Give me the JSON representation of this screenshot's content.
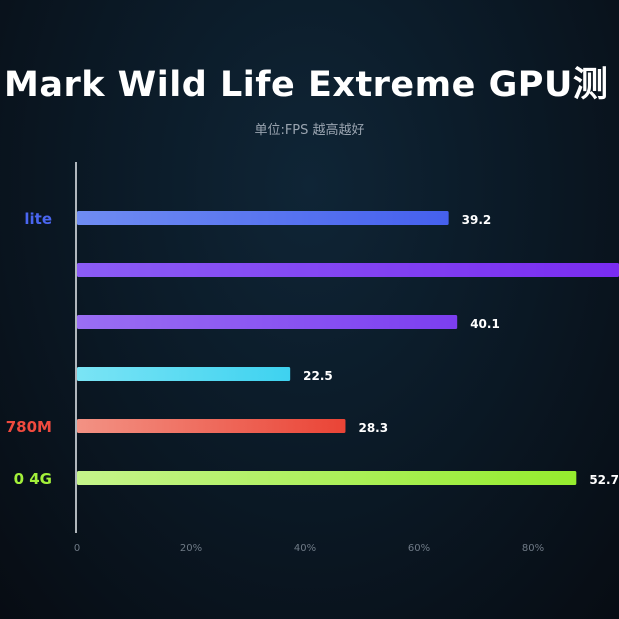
{
  "title": "Mark Wild Life Extreme GPU测",
  "subtitle": "单位:FPS  越高越好",
  "chart_data": {
    "type": "bar",
    "orientation": "horizontal",
    "categories": [
      "lite",
      "",
      "",
      "",
      "780M",
      "0 4G"
    ],
    "values": [
      39.2,
      null,
      40.1,
      22.5,
      28.3,
      52.7
    ],
    "value_labels": [
      "39.2",
      "",
      "40.1",
      "22.5",
      "28.3",
      "52.7"
    ],
    "bar_fill_fraction": [
      0.652,
      1.0,
      0.667,
      0.374,
      0.471,
      0.876
    ],
    "category_colors": [
      "#4a66f0",
      "",
      "",
      "",
      "#ef4a3e",
      "#a3f03a"
    ],
    "bar_gradients": [
      [
        "#6f8cf2",
        "#4560ee"
      ],
      [
        "#8b5cf5",
        "#7a2cf0"
      ],
      [
        "#9a6ef3",
        "#7c3ef0"
      ],
      [
        "#7ae4f5",
        "#3ed2f0"
      ],
      [
        "#f39284",
        "#ea4436"
      ],
      [
        "#c5f48a",
        "#95ec2e"
      ]
    ],
    "x_ticks": [
      "0",
      "20%",
      "40%",
      "60%",
      "80%"
    ],
    "x_tick_values": [
      0,
      0.2,
      0.4,
      0.6,
      0.8
    ],
    "xlabel": "",
    "ylabel": "",
    "grid": false,
    "legend": "none"
  }
}
